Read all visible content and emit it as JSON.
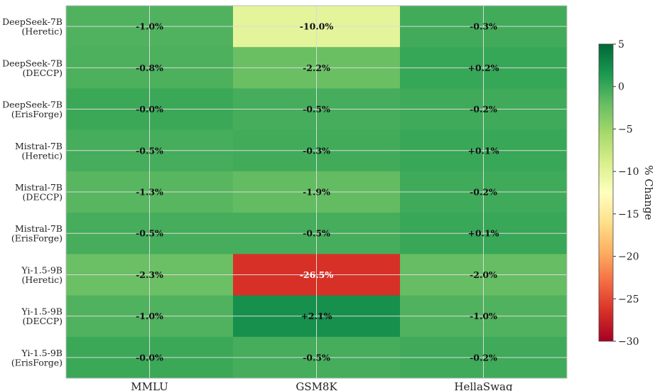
{
  "chart_data": {
    "type": "heatmap",
    "title": "",
    "xlabel": "",
    "ylabel": "",
    "columns": [
      "MMLU",
      "GSM8K",
      "HellaSwag"
    ],
    "rows": [
      {
        "line1": "DeepSeek-7B",
        "line2": "(Heretic)"
      },
      {
        "line1": "DeepSeek-7B",
        "line2": "(DECCP)"
      },
      {
        "line1": "DeepSeek-7B",
        "line2": "(ErisForge)"
      },
      {
        "line1": "Mistral-7B",
        "line2": "(Heretic)"
      },
      {
        "line1": "Mistral-7B",
        "line2": "(DECCP)"
      },
      {
        "line1": "Mistral-7B",
        "line2": "(ErisForge)"
      },
      {
        "line1": "Yi-1.5-9B",
        "line2": "(Heretic)"
      },
      {
        "line1": "Yi-1.5-9B",
        "line2": "(DECCP)"
      },
      {
        "line1": "Yi-1.5-9B",
        "line2": "(ErisForge)"
      }
    ],
    "values": [
      [
        -1.0,
        -10.0,
        -0.3
      ],
      [
        -0.8,
        -2.2,
        0.2
      ],
      [
        -0.0,
        -0.5,
        -0.2
      ],
      [
        -0.5,
        -0.3,
        0.1
      ],
      [
        -1.3,
        -1.9,
        -0.2
      ],
      [
        -0.5,
        -0.5,
        0.1
      ],
      [
        -2.3,
        -26.5,
        -2.0
      ],
      [
        -1.0,
        2.1,
        -1.0
      ],
      [
        -0.0,
        -0.5,
        -0.2
      ]
    ],
    "cell_labels": [
      [
        "-1.0%",
        "-10.0%",
        "-0.3%"
      ],
      [
        "-0.8%",
        "-2.2%",
        "+0.2%"
      ],
      [
        "-0.0%",
        "-0.5%",
        "-0.2%"
      ],
      [
        "-0.5%",
        "-0.3%",
        "+0.1%"
      ],
      [
        "-1.3%",
        "-1.9%",
        "-0.2%"
      ],
      [
        "-0.5%",
        "-0.5%",
        "+0.1%"
      ],
      [
        "-2.3%",
        "-26.5%",
        "-2.0%"
      ],
      [
        "-1.0%",
        "+2.1%",
        "-1.0%"
      ],
      [
        "-0.0%",
        "-0.5%",
        "-0.2%"
      ]
    ],
    "colorbar": {
      "label": "% Change",
      "colormap": "RdYlGn",
      "vmin": -30,
      "vmax": 5,
      "ticks": [
        5,
        0,
        -5,
        -10,
        -15,
        -20,
        -25,
        -30
      ],
      "tick_labels": [
        "5",
        "0",
        "−5",
        "−10",
        "−15",
        "−20",
        "−25",
        "−30"
      ]
    },
    "grid": true,
    "legend": "colorbar-right"
  }
}
